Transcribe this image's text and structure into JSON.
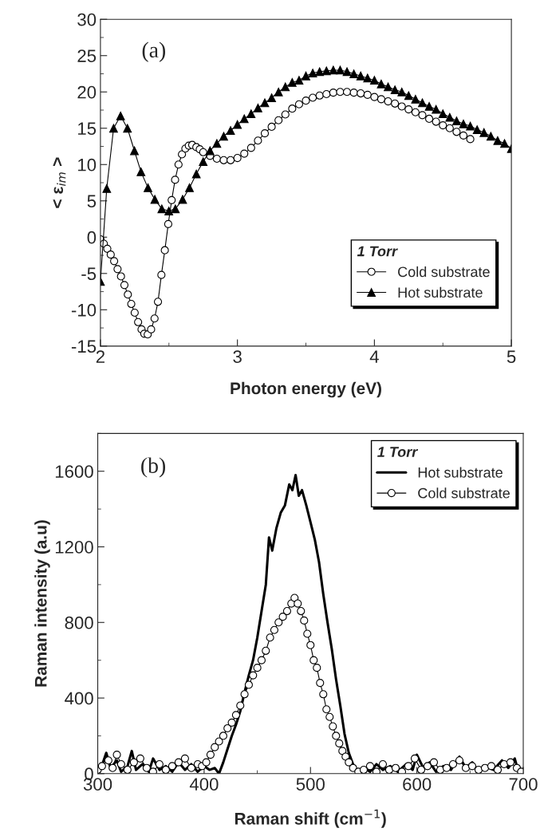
{
  "chart_data": [
    {
      "type": "line",
      "xlabel": "Photon energy (eV)",
      "ylabel": "< ε$_{im}$ >",
      "legend_title": "1 Torr",
      "legend": "bottom right",
      "annotations": [
        "(a)"
      ],
      "xlim": [
        2,
        5
      ],
      "xticks": [
        2,
        3,
        4,
        5
      ],
      "ylim": [
        -15,
        30
      ],
      "yticks": [
        -15,
        -10,
        -5,
        0,
        5,
        10,
        15,
        20,
        25,
        30
      ],
      "series": [
        {
          "name": "Cold substrate",
          "color": "#000000",
          "marker": "circle",
          "x": [
            2.0,
            2.025,
            2.05,
            2.075,
            2.1,
            2.125,
            2.15,
            2.175,
            2.2,
            2.225,
            2.25,
            2.275,
            2.3,
            2.32,
            2.345,
            2.37,
            2.395,
            2.42,
            2.445,
            2.47,
            2.495,
            2.52,
            2.545,
            2.57,
            2.595,
            2.62,
            2.645,
            2.67,
            2.7,
            2.725,
            2.75,
            2.8,
            2.85,
            2.9,
            2.95,
            3.0,
            3.05,
            3.1,
            3.15,
            3.2,
            3.25,
            3.3,
            3.35,
            3.4,
            3.45,
            3.5,
            3.55,
            3.6,
            3.65,
            3.7,
            3.75,
            3.8,
            3.85,
            3.9,
            3.95,
            4.0,
            4.05,
            4.1,
            4.15,
            4.2,
            4.25,
            4.3,
            4.35,
            4.4,
            4.45,
            4.5,
            4.55,
            4.6,
            4.65,
            4.7
          ],
          "values": [
            -0.3,
            -0.9,
            -1.6,
            -2.4,
            -3.3,
            -4.4,
            -5.4,
            -6.6,
            -7.9,
            -9.2,
            -10.4,
            -11.7,
            -12.7,
            -13.3,
            -13.4,
            -12.7,
            -11.2,
            -8.9,
            -5.2,
            -1.8,
            1.8,
            5.1,
            7.9,
            10.0,
            11.4,
            12.2,
            12.6,
            12.7,
            12.4,
            12.1,
            11.7,
            11.2,
            10.8,
            10.6,
            10.6,
            10.9,
            11.5,
            12.3,
            13.3,
            14.3,
            15.2,
            16.1,
            16.9,
            17.7,
            18.3,
            18.8,
            19.2,
            19.5,
            19.7,
            19.9,
            20.0,
            20.0,
            19.9,
            19.8,
            19.6,
            19.3,
            19.0,
            18.7,
            18.4,
            18.0,
            17.6,
            17.2,
            16.8,
            16.3,
            15.9,
            15.4,
            15.0,
            14.5,
            14.0,
            13.5
          ]
        },
        {
          "name": "Hot substrate",
          "color": "#000000",
          "marker": "triangle",
          "x": [
            2.0,
            2.046,
            2.096,
            2.147,
            2.197,
            2.248,
            2.296,
            2.347,
            2.397,
            2.448,
            2.499,
            2.547,
            2.6,
            2.65,
            2.7,
            2.75,
            2.8,
            2.85,
            2.9,
            2.95,
            3.0,
            3.05,
            3.1,
            3.15,
            3.2,
            3.25,
            3.3,
            3.35,
            3.4,
            3.45,
            3.5,
            3.55,
            3.6,
            3.65,
            3.7,
            3.75,
            3.8,
            3.85,
            3.9,
            3.95,
            4.0,
            4.05,
            4.1,
            4.15,
            4.2,
            4.25,
            4.3,
            4.35,
            4.4,
            4.45,
            4.5,
            4.55,
            4.6,
            4.65,
            4.7,
            4.75,
            4.8,
            4.85,
            4.9,
            4.95,
            5.0
          ],
          "values": [
            -6.1,
            6.7,
            15.0,
            16.7,
            15.0,
            11.9,
            9.0,
            6.8,
            5.2,
            3.9,
            3.6,
            3.9,
            5.2,
            6.8,
            8.7,
            10.4,
            11.9,
            12.9,
            13.9,
            14.7,
            15.5,
            16.3,
            17.0,
            17.8,
            18.5,
            19.2,
            20.0,
            20.7,
            21.3,
            21.6,
            22.2,
            22.6,
            22.8,
            22.9,
            23.0,
            23.0,
            22.8,
            22.5,
            22.2,
            21.9,
            21.6,
            21.1,
            20.7,
            20.3,
            20.0,
            19.5,
            19.0,
            18.5,
            18.0,
            17.6,
            17.0,
            16.5,
            16.0,
            15.6,
            15.3,
            14.8,
            14.4,
            13.9,
            13.3,
            12.9,
            12.2
          ]
        }
      ]
    },
    {
      "type": "line",
      "xlabel": "Raman shift (cm$^{−1}$)",
      "ylabel": "Raman intensity (a.u)",
      "legend_title": "1 Torr",
      "legend": "top right",
      "annotations": [
        "(b)"
      ],
      "xlim": [
        300,
        700
      ],
      "xticks": [
        300,
        400,
        500,
        600,
        700
      ],
      "ylim": [
        0,
        1800
      ],
      "yticks": [
        0,
        400,
        800,
        1200,
        1600
      ],
      "series": [
        {
          "name": "Hot substrate",
          "color": "#000000",
          "marker": "none",
          "x": [
            300,
            305,
            308,
            312,
            318,
            322,
            328,
            332,
            336,
            342,
            348,
            352,
            358,
            364,
            370,
            376,
            382,
            388,
            394,
            400,
            405,
            410,
            414,
            418,
            422,
            426,
            430,
            434,
            438,
            442,
            446,
            450,
            454,
            458,
            461,
            464,
            468,
            472,
            476,
            480,
            483,
            486,
            489,
            492,
            496,
            500,
            504,
            508,
            512,
            516,
            520,
            524,
            528,
            532,
            536,
            540,
            544,
            550,
            556,
            562,
            568,
            575,
            582,
            590,
            596,
            600,
            606,
            612,
            618,
            625,
            632,
            640,
            646,
            652,
            658,
            665,
            672,
            680,
            686,
            692,
            696,
            700
          ],
          "values": [
            20,
            60,
            110,
            30,
            70,
            10,
            40,
            120,
            20,
            50,
            10,
            80,
            20,
            40,
            10,
            60,
            20,
            50,
            10,
            40,
            20,
            30,
            0,
            60,
            130,
            200,
            260,
            330,
            430,
            520,
            600,
            720,
            860,
            1000,
            1250,
            1180,
            1300,
            1380,
            1420,
            1530,
            1500,
            1580,
            1470,
            1500,
            1420,
            1330,
            1240,
            1120,
            950,
            800,
            660,
            500,
            360,
            210,
            110,
            50,
            0,
            30,
            10,
            50,
            20,
            40,
            10,
            50,
            20,
            100,
            30,
            60,
            10,
            40,
            20,
            90,
            30,
            60,
            10,
            40,
            20,
            70,
            30,
            80,
            0,
            0
          ]
        },
        {
          "name": "Cold substrate",
          "color": "#000000",
          "marker": "circle",
          "x": [
            300,
            304,
            310,
            314,
            318,
            322,
            328,
            334,
            340,
            346,
            352,
            358,
            364,
            370,
            376,
            382,
            388,
            394,
            398,
            402,
            406,
            410,
            414,
            418,
            422,
            426,
            430,
            434,
            438,
            442,
            446,
            450,
            454,
            458,
            462,
            466,
            470,
            474,
            478,
            482,
            485,
            488,
            491,
            494,
            497,
            500,
            503,
            506,
            509,
            512,
            515,
            518,
            521,
            524,
            527,
            530,
            533,
            536,
            540,
            545,
            550,
            556,
            562,
            568,
            574,
            580,
            586,
            592,
            598,
            604,
            610,
            616,
            622,
            628,
            634,
            640,
            646,
            652,
            658,
            664,
            670,
            676,
            682,
            688,
            694,
            698
          ],
          "values": [
            20,
            40,
            70,
            30,
            100,
            50,
            20,
            60,
            80,
            30,
            10,
            50,
            20,
            40,
            60,
            80,
            30,
            50,
            40,
            60,
            100,
            140,
            170,
            200,
            240,
            270,
            310,
            360,
            420,
            470,
            520,
            560,
            600,
            650,
            720,
            760,
            800,
            830,
            860,
            900,
            930,
            900,
            860,
            810,
            740,
            680,
            600,
            560,
            480,
            420,
            340,
            300,
            250,
            200,
            160,
            120,
            90,
            60,
            30,
            10,
            20,
            40,
            10,
            50,
            20,
            30,
            10,
            40,
            80,
            20,
            40,
            60,
            20,
            30,
            50,
            70,
            30,
            40,
            20,
            30,
            40,
            20,
            50,
            60,
            30,
            10
          ]
        }
      ]
    }
  ]
}
